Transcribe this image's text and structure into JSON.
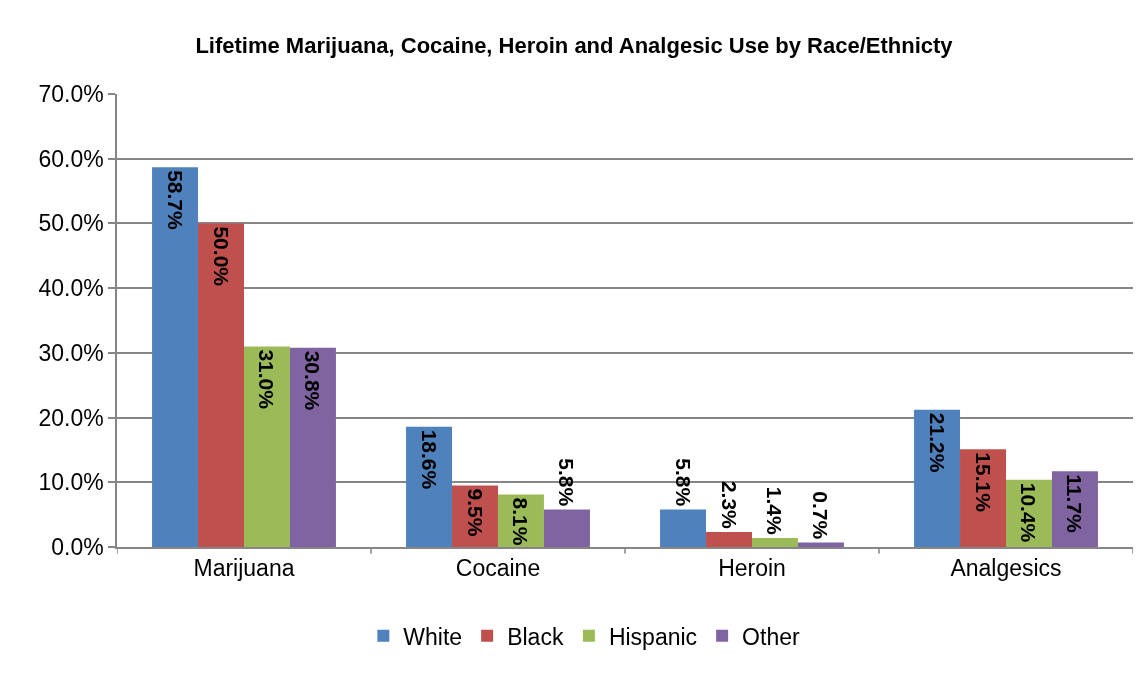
{
  "chart_data": {
    "type": "bar",
    "title": "Lifetime Marijuana, Cocaine, Heroin and Analgesic Use by Race/Ethnicty",
    "categories": [
      "Marijuana",
      "Cocaine",
      "Heroin",
      "Analgesics"
    ],
    "series": [
      {
        "name": "White",
        "color": "#4f81bd",
        "values": [
          58.7,
          18.6,
          5.8,
          21.2
        ],
        "value_labels": [
          "58.7%",
          "18.6%",
          "5.8%",
          "21.2%"
        ]
      },
      {
        "name": "Black",
        "color": "#c0504d",
        "values": [
          50.0,
          9.5,
          2.3,
          15.1
        ],
        "value_labels": [
          "50.0%",
          "9.5%",
          "2.3%",
          "15.1%"
        ]
      },
      {
        "name": "Hispanic",
        "color": "#9bbb59",
        "values": [
          31.0,
          8.1,
          1.4,
          10.4
        ],
        "value_labels": [
          "31.0%",
          "8.1%",
          "1.4%",
          "10.4%"
        ]
      },
      {
        "name": "Other",
        "color": "#8064a2",
        "values": [
          30.8,
          5.8,
          0.7,
          11.7
        ],
        "value_labels": [
          "30.8%",
          "5.8%",
          "0.7%",
          "11.7%"
        ]
      }
    ],
    "ylim": [
      0,
      70
    ],
    "yticks": [
      {
        "value": 0,
        "label": "0.0%"
      },
      {
        "value": 10,
        "label": "10.0%"
      },
      {
        "value": 20,
        "label": "20.0%"
      },
      {
        "value": 30,
        "label": "30.0%"
      },
      {
        "value": 40,
        "label": "40.0%"
      },
      {
        "value": 50,
        "label": "50.0%"
      },
      {
        "value": 60,
        "label": "60.0%"
      },
      {
        "value": 70,
        "label": "70.0%"
      }
    ],
    "grid": "y",
    "legend": "bottom"
  }
}
